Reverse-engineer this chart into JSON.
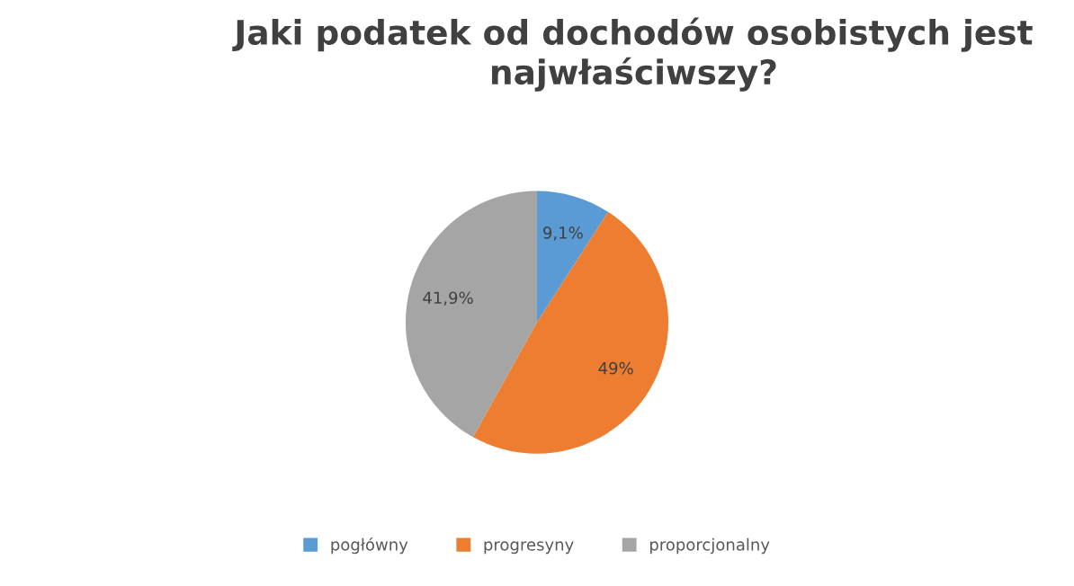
{
  "chart_data": {
    "type": "pie",
    "title": "Jaki podatek od dochodów osobistych jest najwłaściwszy?",
    "categories": [
      "pogłówny",
      "progresyny",
      "proporcjonalny"
    ],
    "values": [
      9.1,
      49,
      41.9
    ],
    "value_labels": [
      "9,1%",
      "49%",
      "41,9%"
    ],
    "colors": [
      "#5b9bd5",
      "#ed7d31",
      "#a5a5a5"
    ],
    "legend": "bottom"
  }
}
